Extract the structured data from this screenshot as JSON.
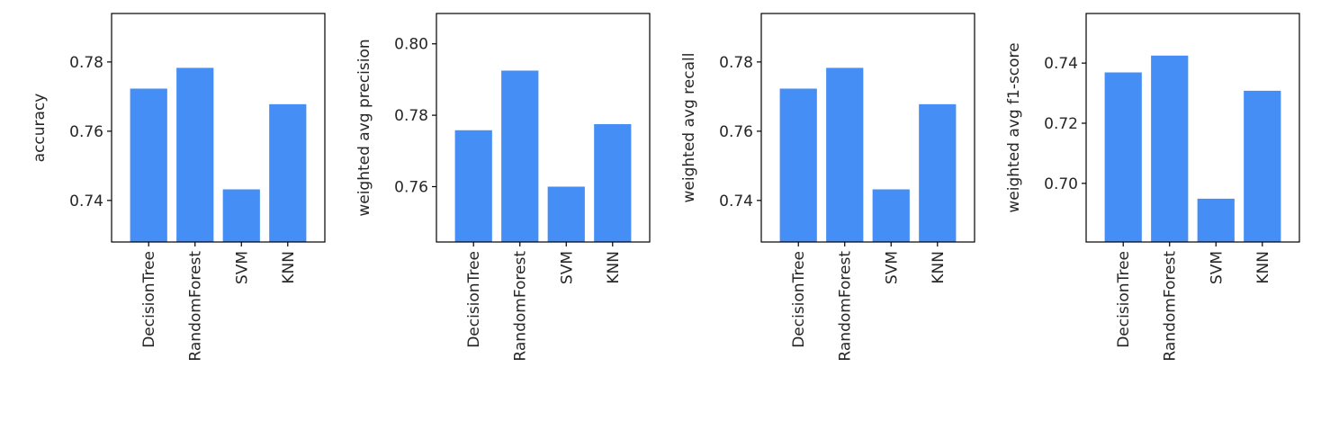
{
  "chart_data": [
    {
      "type": "bar",
      "categories": [
        "DecisionTree",
        "RandomForest",
        "SVM",
        "KNN"
      ],
      "values": [
        0.7723,
        0.7783,
        0.7432,
        0.7678
      ],
      "xlabel": "",
      "ylabel": "accuracy",
      "ylim": [
        0.728,
        0.794
      ],
      "yticks": [
        0.74,
        0.76,
        0.78
      ],
      "ytick_labels": [
        "0.74",
        "0.76",
        "0.78"
      ],
      "grid": false
    },
    {
      "type": "bar",
      "categories": [
        "DecisionTree",
        "RandomForest",
        "SVM",
        "KNN"
      ],
      "values": [
        0.7758,
        0.7925,
        0.76,
        0.7775
      ],
      "xlabel": "",
      "ylabel": "weighted avg precision",
      "ylim": [
        0.7445,
        0.8085
      ],
      "yticks": [
        0.76,
        0.78,
        0.8
      ],
      "ytick_labels": [
        "0.76",
        "0.78",
        "0.80"
      ],
      "grid": false
    },
    {
      "type": "bar",
      "categories": [
        "DecisionTree",
        "RandomForest",
        "SVM",
        "KNN"
      ],
      "values": [
        0.7723,
        0.7783,
        0.7432,
        0.7678
      ],
      "xlabel": "",
      "ylabel": "weighted avg recall",
      "ylim": [
        0.728,
        0.794
      ],
      "yticks": [
        0.74,
        0.76,
        0.78
      ],
      "ytick_labels": [
        "0.74",
        "0.76",
        "0.78"
      ],
      "grid": false
    },
    {
      "type": "bar",
      "categories": [
        "DecisionTree",
        "RandomForest",
        "SVM",
        "KNN"
      ],
      "values": [
        0.7369,
        0.7425,
        0.6949,
        0.7308
      ],
      "xlabel": "",
      "ylabel": "weighted avg f1-score",
      "ylim": [
        0.6805,
        0.7565
      ],
      "yticks": [
        0.7,
        0.72,
        0.74
      ],
      "ytick_labels": [
        "0.70",
        "0.72",
        "0.74"
      ],
      "grid": false
    }
  ],
  "colors": {
    "bar": "#448ef6"
  }
}
